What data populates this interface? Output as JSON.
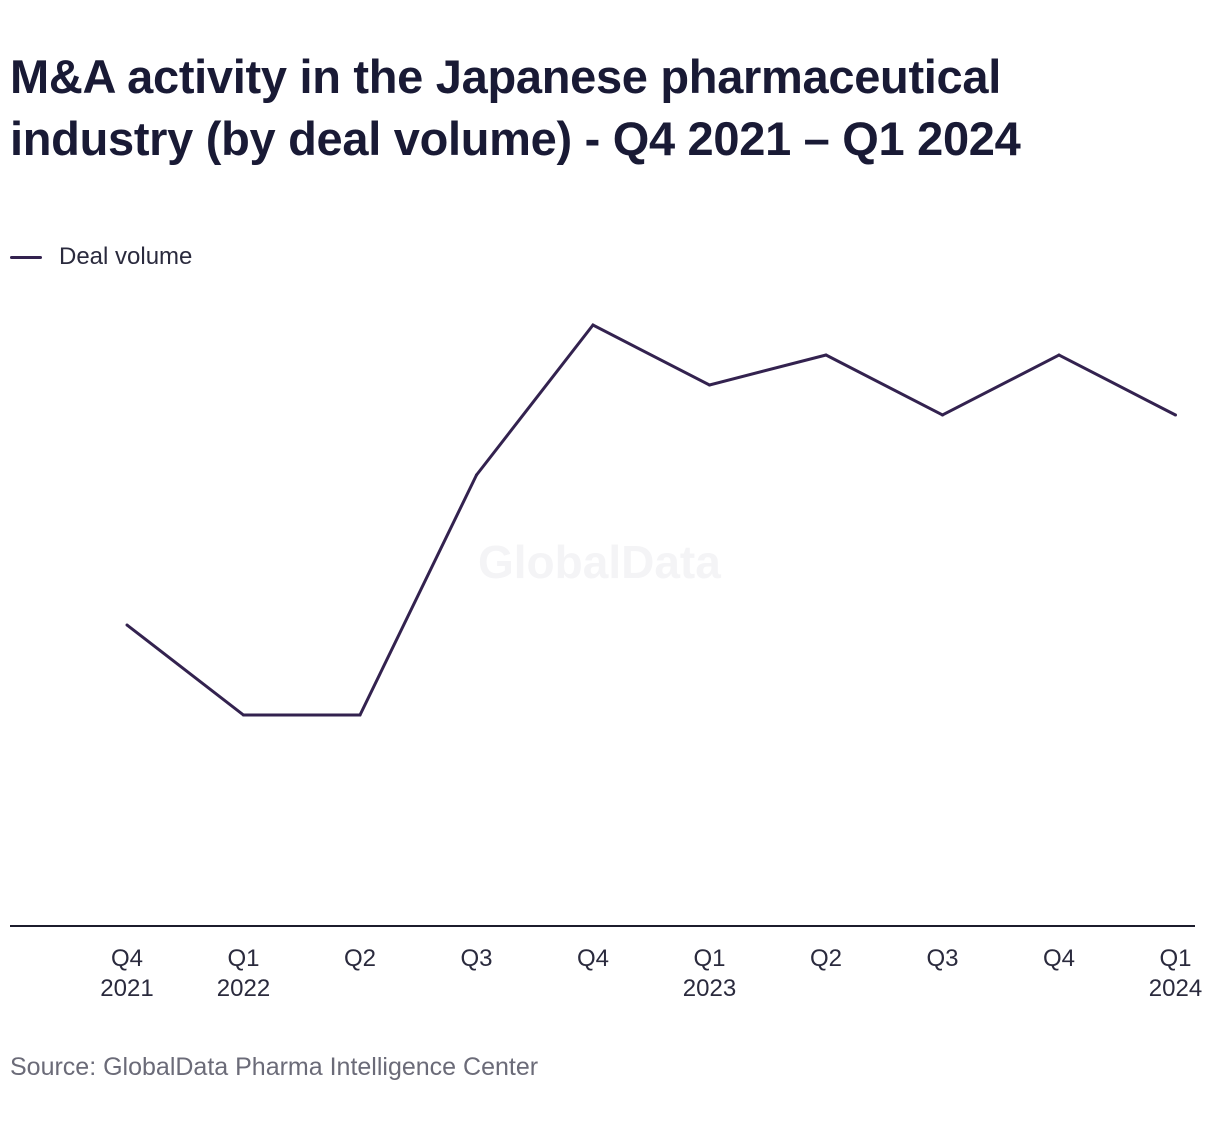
{
  "title": "M&A activity in the Japanese pharmaceutical industry (by deal volume) - Q4 2021 – Q1 2024",
  "watermark": "GlobalData",
  "source": "Source: GlobalData Pharma Intelligence Center",
  "colors": {
    "series": "#33224f",
    "axis": "#1c1c2c",
    "text": "#1c1c33",
    "watermark": "#f4f4f6"
  },
  "chart_data": {
    "type": "line",
    "title": "M&A activity in the Japanese pharmaceutical industry (by deal volume) - Q4 2021 – Q1 2024",
    "xlabel": "",
    "ylabel": "",
    "grid": false,
    "legend_position": "top-left",
    "categories": [
      [
        "Q4",
        "2021"
      ],
      [
        "Q1",
        "2022"
      ],
      [
        "Q2",
        ""
      ],
      [
        "Q3",
        ""
      ],
      [
        "Q4",
        ""
      ],
      [
        "Q1",
        "2023"
      ],
      [
        "Q2",
        ""
      ],
      [
        "Q3",
        ""
      ],
      [
        "Q4",
        ""
      ],
      [
        "Q1",
        "2024"
      ]
    ],
    "ylim": [
      0,
      20
    ],
    "series": [
      {
        "name": "Deal volume",
        "values": [
          10,
          7,
          7,
          15,
          20,
          18,
          19,
          17,
          19,
          17
        ]
      }
    ]
  }
}
